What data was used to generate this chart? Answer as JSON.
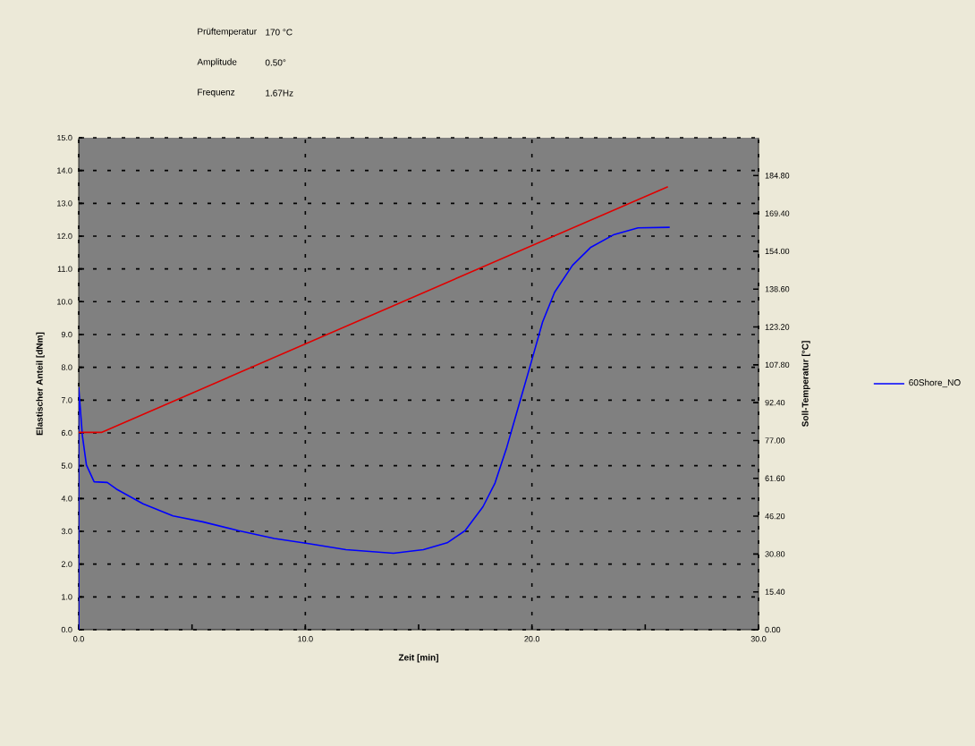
{
  "chart_data": {
    "type": "line",
    "xlabel": "Zeit [min]",
    "ylabel": "Elastischer Anteil [dNm]",
    "y2label": "Soll-Temperatur [°C]",
    "annotations": [
      "Prüftemperatur",
      "170 °C",
      "Amplitude",
      "0.50°",
      "Frequenz",
      "1.67Hz"
    ],
    "xlim": [
      0,
      30
    ],
    "ylim": [
      0,
      15
    ],
    "y2lim": [
      0,
      200.2
    ],
    "xticks": [
      {
        "value": 0,
        "label": "0.0"
      },
      {
        "value": 5,
        "label": null
      },
      {
        "value": 10,
        "label": "10.0"
      },
      {
        "value": 15,
        "label": null
      },
      {
        "value": 20,
        "label": "20.0"
      },
      {
        "value": 25,
        "label": null
      },
      {
        "value": 30,
        "label": "30.0"
      }
    ],
    "yticks": [
      {
        "value": 0,
        "label": "0.0"
      },
      {
        "value": 1,
        "label": "1.0"
      },
      {
        "value": 2,
        "label": "2.0"
      },
      {
        "value": 3,
        "label": "3.0"
      },
      {
        "value": 4,
        "label": "4.0"
      },
      {
        "value": 5,
        "label": "5.0"
      },
      {
        "value": 6,
        "label": "6.0"
      },
      {
        "value": 7,
        "label": "7.0"
      },
      {
        "value": 8,
        "label": "8.0"
      },
      {
        "value": 9,
        "label": "9.0"
      },
      {
        "value": 10,
        "label": "10.0"
      },
      {
        "value": 11,
        "label": "11.0"
      },
      {
        "value": 12,
        "label": "12.0"
      },
      {
        "value": 13,
        "label": "13.0"
      },
      {
        "value": 14,
        "label": "14.0"
      },
      {
        "value": 15,
        "label": "15.0"
      }
    ],
    "y2ticks": [
      {
        "value": 0,
        "label": "0.00"
      },
      {
        "value": 15.4,
        "label": "15.40"
      },
      {
        "value": 30.8,
        "label": "30.80"
      },
      {
        "value": 46.2,
        "label": "46.20"
      },
      {
        "value": 61.6,
        "label": "61.60"
      },
      {
        "value": 77,
        "label": "77.00"
      },
      {
        "value": 92.4,
        "label": "92.40"
      },
      {
        "value": 107.8,
        "label": "107.80"
      },
      {
        "value": 123.2,
        "label": "123.20"
      },
      {
        "value": 138.6,
        "label": "138.60"
      },
      {
        "value": 154,
        "label": "154.00"
      },
      {
        "value": 169.4,
        "label": "169.40"
      },
      {
        "value": 184.8,
        "label": "184.80"
      }
    ],
    "grid": true,
    "legend": "right",
    "series": [
      {
        "name": "60Shore_NO",
        "color": "#0000ff",
        "x": [
          0,
          0,
          0.16,
          0.34,
          0.68,
          1.26,
          1.66,
          2.84,
          4.16,
          5.47,
          7.05,
          8.63,
          10.21,
          11.79,
          13.89,
          15.21,
          16.26,
          17.05,
          17.84,
          18.37,
          18.89,
          19.42,
          19.95,
          20.47,
          21.0,
          21.79,
          22.58,
          23.63,
          24.68,
          26.08
        ],
        "values": [
          0,
          7.38,
          5.93,
          5.02,
          4.51,
          4.49,
          4.29,
          3.84,
          3.47,
          3.29,
          3.02,
          2.78,
          2.62,
          2.44,
          2.33,
          2.44,
          2.65,
          3.02,
          3.75,
          4.47,
          5.56,
          6.84,
          8.11,
          9.38,
          10.29,
          11.11,
          11.65,
          12.05,
          12.25,
          12.27
        ]
      },
      {
        "color": "#e00000",
        "axis": "y2",
        "x": [
          0,
          1.0,
          26.0
        ],
        "values": [
          80.3,
          80.3,
          180.3
        ]
      }
    ]
  }
}
